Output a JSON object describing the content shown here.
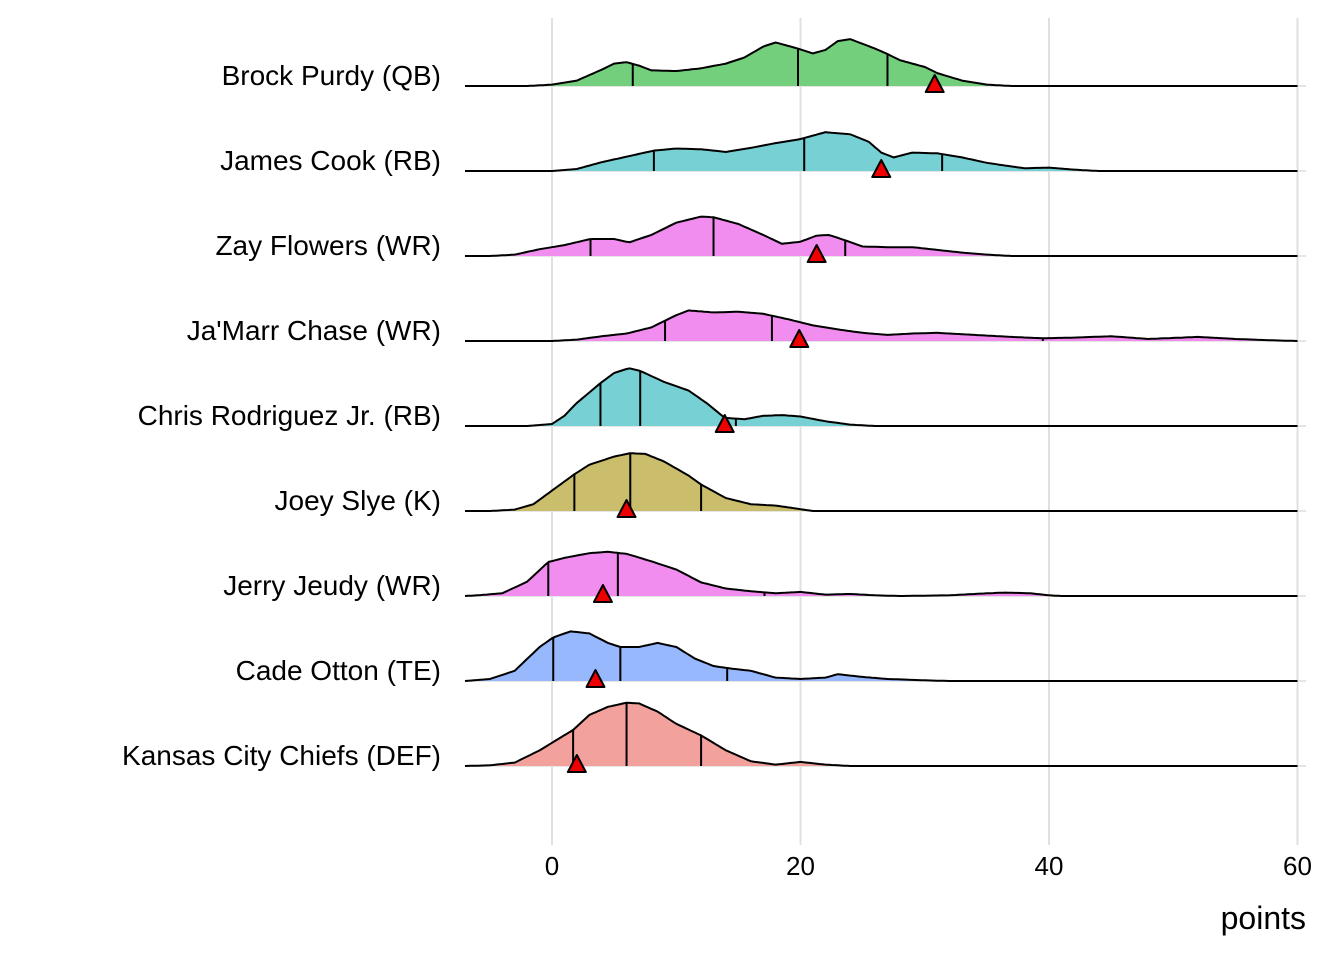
{
  "chart_data": {
    "type": "ridgeline",
    "xlabel": "points",
    "xlim": [
      -7,
      60
    ],
    "x_ticks": [
      0,
      20,
      40,
      60
    ],
    "colors": {
      "QB": "#74cf7d",
      "RB": "#77d1d4",
      "WR": "#f28df0",
      "K": "#cabd6b",
      "TE": "#98b8fd",
      "DEF": "#f3a19c",
      "marker": "#ee0000"
    },
    "players": [
      {
        "name": "Brock Purdy (QB)",
        "position": "QB",
        "quantiles": [
          6.5,
          19.8,
          27.0
        ],
        "marker": 30.8,
        "density": [
          [
            -7,
            0
          ],
          [
            -2,
            0
          ],
          [
            0,
            0.02
          ],
          [
            2,
            0.08
          ],
          [
            4,
            0.24
          ],
          [
            5,
            0.33
          ],
          [
            6,
            0.35
          ],
          [
            7,
            0.3
          ],
          [
            8,
            0.23
          ],
          [
            10,
            0.22
          ],
          [
            12,
            0.26
          ],
          [
            14,
            0.33
          ],
          [
            15.5,
            0.42
          ],
          [
            17,
            0.58
          ],
          [
            18,
            0.64
          ],
          [
            19.8,
            0.55
          ],
          [
            21,
            0.48
          ],
          [
            22,
            0.53
          ],
          [
            23,
            0.66
          ],
          [
            24,
            0.69
          ],
          [
            26,
            0.55
          ],
          [
            27,
            0.47
          ],
          [
            28,
            0.38
          ],
          [
            30,
            0.28
          ],
          [
            31,
            0.19
          ],
          [
            33,
            0.08
          ],
          [
            35,
            0.02
          ],
          [
            37,
            0
          ],
          [
            60,
            0
          ]
        ]
      },
      {
        "name": "James Cook (RB)",
        "position": "RB",
        "quantiles": [
          8.2,
          20.3,
          31.4
        ],
        "marker": 26.5,
        "density": [
          [
            -7,
            0
          ],
          [
            -3,
            0
          ],
          [
            0,
            0
          ],
          [
            2,
            0.03
          ],
          [
            4,
            0.13
          ],
          [
            6,
            0.21
          ],
          [
            8.2,
            0.3
          ],
          [
            10,
            0.33
          ],
          [
            12,
            0.32
          ],
          [
            14,
            0.28
          ],
          [
            16,
            0.34
          ],
          [
            18,
            0.41
          ],
          [
            20,
            0.47
          ],
          [
            22,
            0.57
          ],
          [
            24,
            0.54
          ],
          [
            25.5,
            0.43
          ],
          [
            26.5,
            0.27
          ],
          [
            27.5,
            0.2
          ],
          [
            29,
            0.27
          ],
          [
            31,
            0.26
          ],
          [
            33,
            0.2
          ],
          [
            35,
            0.12
          ],
          [
            38,
            0.04
          ],
          [
            40,
            0.05
          ],
          [
            42,
            0.02
          ],
          [
            44,
            0
          ],
          [
            60,
            0
          ]
        ]
      },
      {
        "name": "Zay Flowers (WR)",
        "position": "WR",
        "quantiles": [
          3.1,
          13.0,
          23.6
        ],
        "marker": 21.3,
        "density": [
          [
            -7,
            0
          ],
          [
            -5,
            0
          ],
          [
            -3,
            0.02
          ],
          [
            -1,
            0.1
          ],
          [
            1,
            0.16
          ],
          [
            3.1,
            0.25
          ],
          [
            5,
            0.25
          ],
          [
            6.2,
            0.2
          ],
          [
            8,
            0.31
          ],
          [
            10,
            0.49
          ],
          [
            12,
            0.58
          ],
          [
            13,
            0.57
          ],
          [
            15,
            0.47
          ],
          [
            17,
            0.31
          ],
          [
            18.5,
            0.18
          ],
          [
            20,
            0.21
          ],
          [
            21.3,
            0.3
          ],
          [
            22.3,
            0.31
          ],
          [
            23.6,
            0.23
          ],
          [
            25,
            0.14
          ],
          [
            27,
            0.13
          ],
          [
            29,
            0.13
          ],
          [
            31,
            0.09
          ],
          [
            33,
            0.05
          ],
          [
            35,
            0.02
          ],
          [
            37,
            0
          ],
          [
            60,
            0
          ]
        ]
      },
      {
        "name": "Ja'Marr Chase (WR)",
        "position": "WR",
        "quantiles": [
          9.1,
          17.7,
          39.5
        ],
        "marker": 19.9,
        "density": [
          [
            -7,
            0
          ],
          [
            0,
            0
          ],
          [
            2,
            0.02
          ],
          [
            4,
            0.07
          ],
          [
            6,
            0.11
          ],
          [
            8,
            0.2
          ],
          [
            10,
            0.38
          ],
          [
            11,
            0.45
          ],
          [
            13,
            0.42
          ],
          [
            15,
            0.43
          ],
          [
            17,
            0.4
          ],
          [
            19,
            0.32
          ],
          [
            21,
            0.23
          ],
          [
            23,
            0.17
          ],
          [
            25,
            0.12
          ],
          [
            27,
            0.09
          ],
          [
            29,
            0.11
          ],
          [
            31,
            0.12
          ],
          [
            33,
            0.1
          ],
          [
            35,
            0.08
          ],
          [
            37,
            0.06
          ],
          [
            39.5,
            0.04
          ],
          [
            42,
            0.05
          ],
          [
            45,
            0.07
          ],
          [
            48,
            0.03
          ],
          [
            52,
            0.06
          ],
          [
            55,
            0.03
          ],
          [
            58,
            0.01
          ],
          [
            60,
            0
          ]
        ]
      },
      {
        "name": "Chris Rodriguez Jr. (RB)",
        "position": "RB",
        "quantiles": [
          3.9,
          7.1,
          14.8
        ],
        "marker": 13.9,
        "density": [
          [
            -7,
            0
          ],
          [
            -2,
            0
          ],
          [
            0,
            0.03
          ],
          [
            1,
            0.15
          ],
          [
            2,
            0.34
          ],
          [
            3.9,
            0.63
          ],
          [
            5,
            0.78
          ],
          [
            6.2,
            0.85
          ],
          [
            7.1,
            0.81
          ],
          [
            9,
            0.65
          ],
          [
            11,
            0.52
          ],
          [
            12.5,
            0.33
          ],
          [
            13.9,
            0.12
          ],
          [
            15.5,
            0.1
          ],
          [
            17,
            0.15
          ],
          [
            18.5,
            0.16
          ],
          [
            20,
            0.14
          ],
          [
            22,
            0.07
          ],
          [
            24,
            0.02
          ],
          [
            26,
            0
          ],
          [
            60,
            0
          ]
        ]
      },
      {
        "name": "Joey Slye (K)",
        "position": "K",
        "quantiles": [
          1.8,
          6.3,
          12.0
        ],
        "marker": 6.0,
        "density": [
          [
            -7,
            0
          ],
          [
            -5,
            0
          ],
          [
            -3,
            0.02
          ],
          [
            -1.5,
            0.1
          ],
          [
            0,
            0.3
          ],
          [
            1.8,
            0.54
          ],
          [
            3,
            0.68
          ],
          [
            5,
            0.8
          ],
          [
            6.3,
            0.85
          ],
          [
            7.5,
            0.84
          ],
          [
            9,
            0.73
          ],
          [
            11,
            0.52
          ],
          [
            12,
            0.39
          ],
          [
            14,
            0.19
          ],
          [
            16,
            0.1
          ],
          [
            18,
            0.08
          ],
          [
            19.5,
            0.04
          ],
          [
            21,
            0
          ],
          [
            60,
            0
          ]
        ]
      },
      {
        "name": "Jerry Jeudy (WR)",
        "position": "WR",
        "quantiles": [
          -0.3,
          5.3,
          17.1
        ],
        "marker": 4.1,
        "density": [
          [
            -7,
            0
          ],
          [
            -6,
            0.01
          ],
          [
            -4,
            0.04
          ],
          [
            -2,
            0.21
          ],
          [
            -0.3,
            0.5
          ],
          [
            1,
            0.56
          ],
          [
            3,
            0.63
          ],
          [
            4.5,
            0.65
          ],
          [
            6,
            0.62
          ],
          [
            8,
            0.51
          ],
          [
            10,
            0.39
          ],
          [
            12,
            0.2
          ],
          [
            14,
            0.11
          ],
          [
            16,
            0.07
          ],
          [
            18,
            0.04
          ],
          [
            20,
            0.06
          ],
          [
            22,
            0.02
          ],
          [
            24,
            0.03
          ],
          [
            26,
            0.01
          ],
          [
            28,
            0
          ],
          [
            32,
            0.01
          ],
          [
            35,
            0.04
          ],
          [
            36.5,
            0.05
          ],
          [
            38.5,
            0.04
          ],
          [
            40,
            0.01
          ],
          [
            41,
            0
          ],
          [
            60,
            0
          ]
        ]
      },
      {
        "name": "Cade Otton (TE)",
        "position": "TE",
        "quantiles": [
          0.1,
          5.5,
          14.1
        ],
        "marker": 3.5,
        "density": [
          [
            -7,
            0
          ],
          [
            -5,
            0.03
          ],
          [
            -3,
            0.15
          ],
          [
            -1,
            0.5
          ],
          [
            0.1,
            0.64
          ],
          [
            1.5,
            0.73
          ],
          [
            3,
            0.7
          ],
          [
            4.5,
            0.56
          ],
          [
            5.5,
            0.5
          ],
          [
            7,
            0.5
          ],
          [
            8.5,
            0.56
          ],
          [
            10,
            0.5
          ],
          [
            11.5,
            0.33
          ],
          [
            13,
            0.22
          ],
          [
            14.1,
            0.19
          ],
          [
            16,
            0.15
          ],
          [
            18,
            0.05
          ],
          [
            20,
            0.03
          ],
          [
            22,
            0.05
          ],
          [
            23,
            0.1
          ],
          [
            25,
            0.06
          ],
          [
            27,
            0.03
          ],
          [
            30,
            0.01
          ],
          [
            32,
            0
          ],
          [
            60,
            0
          ]
        ]
      },
      {
        "name": "Kansas City Chiefs (DEF)",
        "position": "DEF",
        "quantiles": [
          1.7,
          6.0,
          12.0
        ],
        "marker": 2.0,
        "density": [
          [
            -7,
            0
          ],
          [
            -5,
            0.01
          ],
          [
            -3,
            0.05
          ],
          [
            -1,
            0.23
          ],
          [
            1.7,
            0.53
          ],
          [
            3,
            0.75
          ],
          [
            4.5,
            0.87
          ],
          [
            6,
            0.93
          ],
          [
            7,
            0.92
          ],
          [
            8.5,
            0.8
          ],
          [
            10,
            0.62
          ],
          [
            12,
            0.45
          ],
          [
            14,
            0.23
          ],
          [
            16,
            0.07
          ],
          [
            18,
            0.02
          ],
          [
            20,
            0.06
          ],
          [
            22,
            0.02
          ],
          [
            24,
            0
          ],
          [
            60,
            0
          ]
        ]
      }
    ]
  }
}
